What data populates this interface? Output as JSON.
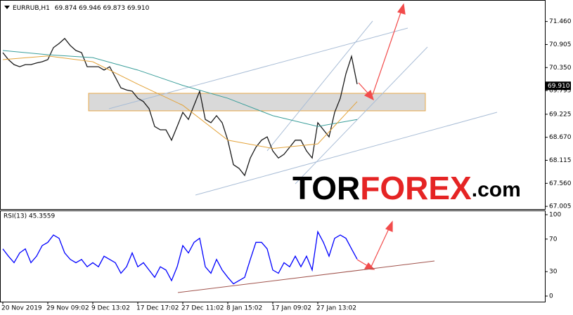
{
  "chart_data": [
    {
      "type": "line",
      "title": "EURRUB,H1",
      "subtitle": "69.874 69.946 69.873 69.910",
      "watermark": [
        "TOR",
        "FOREX",
        ".com"
      ],
      "categories": [
        "20 Nov 2019",
        null,
        null,
        null,
        null,
        null,
        null,
        null,
        "29 Nov 09:02",
        null,
        null,
        null,
        null,
        null,
        null,
        null,
        "9 Dec 13:02",
        null,
        null,
        null,
        null,
        null,
        null,
        null,
        "17 Dec 17:02",
        null,
        null,
        null,
        null,
        null,
        null,
        null,
        "27 Dec 11:02",
        null,
        null,
        null,
        null,
        null,
        null,
        null,
        "8 Jan 15:02",
        null,
        null,
        null,
        null,
        null,
        null,
        null,
        "17 Jan 09:02",
        null,
        null,
        null,
        null,
        null,
        null,
        null,
        "27 Jan 13:02",
        null,
        null,
        null,
        null,
        null,
        null,
        null
      ],
      "series": [
        {
          "color": "#1a1a1a",
          "values": [
            70.71,
            70.54,
            70.42,
            70.37,
            70.42,
            70.42,
            70.46,
            70.49,
            70.54,
            70.83,
            70.93,
            71.05,
            70.88,
            70.76,
            70.71,
            70.37,
            70.37,
            70.37,
            70.29,
            70.37,
            70.12,
            69.86,
            69.81,
            69.78,
            69.61,
            69.53,
            69.36,
            68.93,
            68.85,
            68.85,
            68.6,
            68.93,
            69.27,
            69.1,
            69.44,
            69.78,
            69.1,
            69.02,
            69.19,
            69.02,
            68.6,
            68.01,
            67.92,
            67.75,
            68.17,
            68.43,
            68.6,
            68.68,
            68.34,
            68.17,
            68.26,
            68.43,
            68.6,
            68.6,
            68.34,
            68.17,
            69.02,
            68.85,
            68.68,
            69.27,
            69.61,
            70.2,
            70.62,
            69.95
          ]
        },
        {
          "color": "#3a9e9a",
          "x": [
            0,
            8,
            16,
            24,
            32,
            40,
            48,
            56,
            63
          ],
          "values": [
            70.76,
            70.66,
            70.59,
            70.29,
            69.92,
            69.61,
            69.19,
            68.93,
            69.1
          ]
        },
        {
          "color": "#e3a33a",
          "x": [
            0,
            8,
            16,
            24,
            32,
            40,
            48,
            56,
            63
          ],
          "values": [
            70.54,
            70.63,
            70.49,
            69.95,
            69.44,
            68.6,
            68.4,
            68.51,
            69.53
          ]
        }
      ],
      "last_price": {
        "value": 69.91,
        "label": "69.910"
      },
      "ylim": [
        66.94,
        71.91
      ],
      "yticks": [
        {
          "value": 71.46,
          "label": "71.460"
        },
        {
          "value": 70.905,
          "label": "70.905"
        },
        {
          "value": 70.35,
          "label": "70.350"
        },
        {
          "value": 69.795,
          "label": "69.795"
        },
        {
          "value": 69.225,
          "label": "69.225"
        },
        {
          "value": 68.67,
          "label": "68.670"
        },
        {
          "value": 68.115,
          "label": "68.115"
        },
        {
          "value": 67.56,
          "label": "67.560"
        },
        {
          "value": 67.005,
          "label": "67.005"
        }
      ]
    },
    {
      "type": "line",
      "title": "RSI(13) 45.3559",
      "series": [
        {
          "color": "#0000ff",
          "values": [
            58,
            49,
            41,
            53,
            58,
            41,
            49,
            62,
            66,
            75,
            71,
            53,
            45,
            41,
            45,
            36,
            41,
            36,
            49,
            45,
            41,
            28,
            36,
            53,
            36,
            41,
            32,
            23,
            36,
            32,
            19,
            36,
            62,
            53,
            66,
            71,
            36,
            28,
            45,
            32,
            23,
            15,
            19,
            23,
            45,
            66,
            66,
            58,
            32,
            28,
            41,
            36,
            49,
            36,
            49,
            32,
            79,
            66,
            49,
            71,
            75,
            71,
            58,
            45.3559
          ]
        }
      ],
      "ylim": [
        0,
        100
      ],
      "yticks": [
        0,
        30,
        70,
        100
      ]
    }
  ]
}
